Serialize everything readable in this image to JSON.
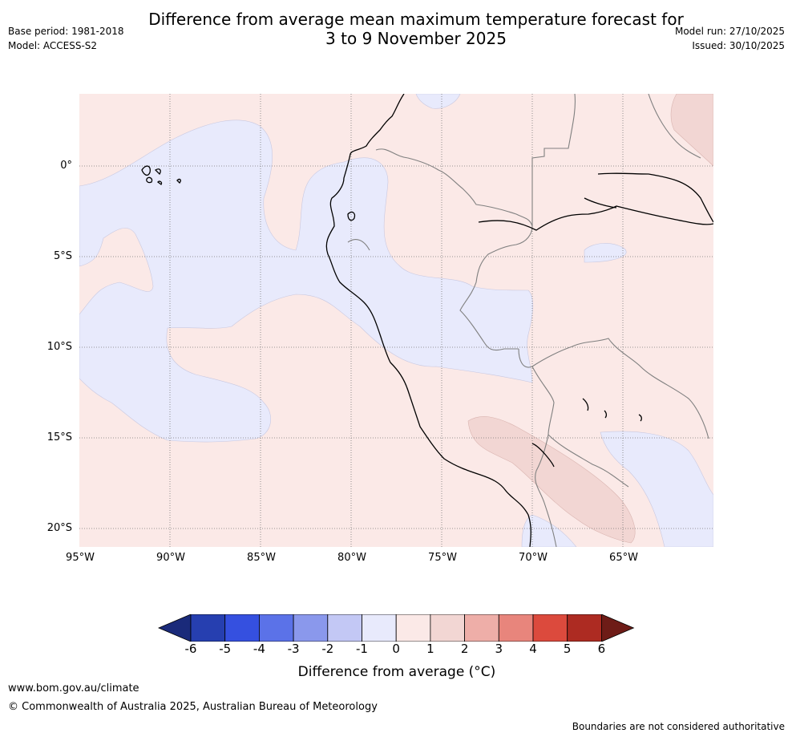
{
  "title": {
    "line1": "Difference from average mean maximum temperature forecast for",
    "line2": "3 to 9 November 2025"
  },
  "meta_left": {
    "base_period": "Base period: 1981-2018",
    "model": "Model: ACCESS-S2"
  },
  "meta_right": {
    "model_run": "Model run: 27/10/2025",
    "issued": "Issued: 30/10/2025"
  },
  "map": {
    "lat_labels": [
      "0°",
      "5°S",
      "10°S",
      "15°S",
      "20°S"
    ],
    "lon_labels": [
      "95°W",
      "90°W",
      "85°W",
      "80°W",
      "75°W",
      "70°W",
      "65°W"
    ],
    "colors": {
      "background_anomaly": "#fbe9e7",
      "slight_cool": "#e8eafc",
      "warm_1_2": "#f2d6d3",
      "coastline": "#000000",
      "border": "#808080",
      "grid": "#777777"
    }
  },
  "colorbar": {
    "ticks": [
      "-6",
      "-5",
      "-4",
      "-3",
      "-2",
      "-1",
      "0",
      "1",
      "2",
      "3",
      "4",
      "5",
      "6"
    ],
    "colors": [
      "#1a2a7a",
      "#263fb0",
      "#3550e0",
      "#5b72e8",
      "#8a98ec",
      "#c3c8f5",
      "#e8eafc",
      "#fbe9e7",
      "#f2d6d3",
      "#eeaea8",
      "#e8857c",
      "#dc4a3d",
      "#ad2b22",
      "#6e1c17"
    ],
    "title": "Difference from average (°C)"
  },
  "footer": {
    "url": "www.bom.gov.au/climate",
    "copyright": "© Commonwealth of Australia 2025, Australian Bureau of Meteorology",
    "disclaimer": "Boundaries are not considered authoritative"
  }
}
